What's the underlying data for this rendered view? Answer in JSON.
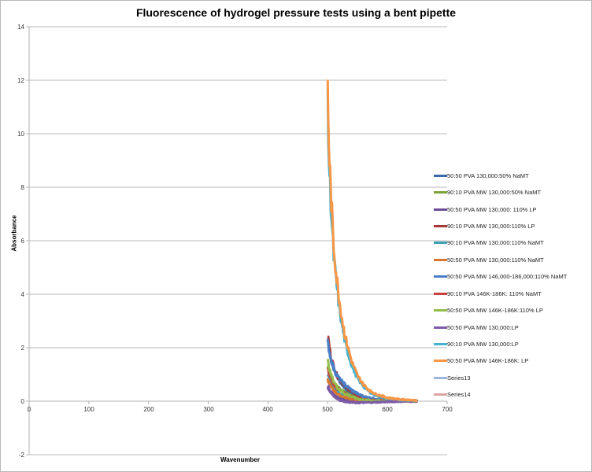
{
  "chart_data": {
    "type": "line",
    "title": "Fluorescence of hydrogel pressure tests using a bent pipette",
    "xlabel": "Wavenumber",
    "ylabel": "Absorbance",
    "xlim": [
      0,
      700
    ],
    "ylim": [
      -2,
      14
    ],
    "xticks": [
      0,
      100,
      200,
      300,
      400,
      500,
      600,
      700
    ],
    "yticks": [
      -2,
      0,
      2,
      4,
      6,
      8,
      10,
      12,
      14
    ],
    "grid": "horizontal",
    "legend_position": "right",
    "series": [
      {
        "name": "50:50 PVA 130,000:50% NaMT",
        "color": "#3c6aa6",
        "x": [
          500,
          505,
          510,
          515,
          520,
          530,
          540,
          550,
          560,
          580,
          600,
          620,
          650
        ],
        "values": [
          2.3,
          1.6,
          1.2,
          0.95,
          0.75,
          0.45,
          0.3,
          0.2,
          0.12,
          0.06,
          0.03,
          0.02,
          0.01
        ]
      },
      {
        "name": "90:10 PVA MW 130,000:50% NaMT",
        "color": "#7ea23a",
        "x": [
          500,
          505,
          510,
          515,
          520,
          530,
          540,
          550,
          560,
          580,
          600,
          620,
          650
        ],
        "values": [
          1.4,
          0.9,
          0.7,
          0.55,
          0.45,
          0.3,
          0.2,
          0.12,
          0.08,
          0.04,
          0.02,
          0.01,
          0.0
        ]
      },
      {
        "name": "50:50 PVA MW 130,000: 110% LP",
        "color": "#6b4e96",
        "x": [
          500,
          505,
          510,
          515,
          520,
          530,
          540,
          550,
          560,
          580,
          600,
          620,
          650
        ],
        "values": [
          0.5,
          0.35,
          0.25,
          0.18,
          0.12,
          0.06,
          0.02,
          -0.02,
          -0.03,
          -0.02,
          -0.01,
          0.0,
          0.0
        ]
      },
      {
        "name": "90:10 PVA MW 130,000:110% LP",
        "color": "#a33a36",
        "x": [
          500,
          505,
          510,
          515,
          520,
          530,
          540,
          550,
          560,
          580,
          600,
          620,
          650
        ],
        "values": [
          2.5,
          1.7,
          1.3,
          1.0,
          0.8,
          0.55,
          0.35,
          0.22,
          0.14,
          0.07,
          0.04,
          0.02,
          0.01
        ]
      },
      {
        "name": "90:10 PVA MW 130,000:110% NaMT",
        "color": "#3f9fb4",
        "x": [
          500,
          505,
          510,
          515,
          520,
          530,
          540,
          550,
          560,
          580,
          600,
          620,
          650
        ],
        "values": [
          1.0,
          0.7,
          0.5,
          0.38,
          0.3,
          0.2,
          0.12,
          0.08,
          0.05,
          0.03,
          0.02,
          0.01,
          0.0
        ]
      },
      {
        "name": "50:50 PVA MW 130,000:110% NaMT",
        "color": "#d9782d",
        "x": [
          500,
          505,
          510,
          515,
          520,
          530,
          540,
          550,
          560,
          580,
          600,
          620,
          650
        ],
        "values": [
          0.8,
          0.55,
          0.4,
          0.3,
          0.22,
          0.14,
          0.08,
          0.05,
          0.03,
          0.02,
          0.01,
          0.0,
          0.0
        ]
      },
      {
        "name": "50:50 PVA MW 146,000-186,000:110% NaMT",
        "color": "#4a7ec8",
        "x": [
          500,
          505,
          510,
          515,
          520,
          530,
          540,
          550,
          560,
          580,
          600,
          620,
          650
        ],
        "values": [
          2.2,
          1.6,
          1.25,
          1.0,
          0.82,
          0.6,
          0.42,
          0.28,
          0.18,
          0.09,
          0.05,
          0.03,
          0.01
        ]
      },
      {
        "name": "90:10 PVA 146K-186K: 110% NaMT",
        "color": "#c94040",
        "x": [
          500,
          505,
          510,
          515,
          520,
          530,
          540,
          550,
          560,
          580,
          600,
          620,
          650
        ],
        "values": [
          1.2,
          0.85,
          0.65,
          0.5,
          0.4,
          0.26,
          0.16,
          0.1,
          0.06,
          0.03,
          0.02,
          0.01,
          0.0
        ]
      },
      {
        "name": "50:50 PVA MW 146K-186K:110% LP",
        "color": "#94bd4a",
        "x": [
          500,
          505,
          510,
          515,
          520,
          530,
          540,
          550,
          560,
          580,
          600,
          620,
          650
        ],
        "values": [
          1.5,
          1.0,
          0.75,
          0.55,
          0.42,
          0.26,
          0.16,
          0.09,
          0.05,
          0.02,
          0.01,
          0.0,
          0.0
        ]
      },
      {
        "name": "50:50 PVA MW 130,000:LP",
        "color": "#7d5aa8",
        "x": [
          500,
          505,
          510,
          515,
          520,
          530,
          540,
          550,
          560,
          580,
          600,
          620,
          650
        ],
        "values": [
          0.6,
          0.35,
          0.2,
          0.1,
          0.04,
          -0.02,
          -0.05,
          -0.06,
          -0.05,
          -0.04,
          -0.02,
          -0.01,
          0.0
        ]
      },
      {
        "name": "90:10 PVA MW 130,000:LP",
        "color": "#45b3cf",
        "x": [
          500,
          502,
          505,
          508,
          510,
          515,
          520,
          525,
          530,
          540,
          550,
          560,
          570,
          580,
          600,
          620,
          650
        ],
        "values": [
          11.0,
          9.0,
          7.5,
          6.2,
          5.4,
          4.3,
          3.4,
          2.7,
          2.1,
          1.35,
          0.85,
          0.55,
          0.35,
          0.22,
          0.1,
          0.05,
          0.02
        ]
      },
      {
        "name": "50:50 PVA MW 146K-186K: LP",
        "color": "#f79646",
        "x": [
          500,
          502,
          505,
          508,
          510,
          515,
          520,
          525,
          530,
          540,
          550,
          560,
          570,
          580,
          600,
          620,
          650
        ],
        "values": [
          11.7,
          9.6,
          7.9,
          6.6,
          5.8,
          4.6,
          3.7,
          2.95,
          2.35,
          1.5,
          0.95,
          0.62,
          0.4,
          0.27,
          0.13,
          0.07,
          0.03
        ]
      },
      {
        "name": "Series13",
        "color": "#9db5dc",
        "x": [],
        "values": []
      },
      {
        "name": "Series14",
        "color": "#dba3a2",
        "x": [],
        "values": []
      }
    ]
  },
  "chart": {
    "title": "Fluorescence of hydrogel pressure tests using a bent pipette",
    "xlabel": "Wavenumber",
    "ylabel": "Absorbance",
    "xtick_labels": [
      "0",
      "100",
      "200",
      "300",
      "400",
      "500",
      "600",
      "700"
    ],
    "ytick_labels": [
      "14",
      "12",
      "10",
      "8",
      "6",
      "4",
      "2",
      "0",
      "-2"
    ]
  },
  "legend": {
    "items": [
      {
        "label": "50:50 PVA 130,000:50% NaMT",
        "color": "#3c6aa6"
      },
      {
        "label": "90:10 PVA MW 130,000:50% NaMT",
        "color": "#7ea23a"
      },
      {
        "label": "50:50 PVA MW 130,000: 110% LP",
        "color": "#6b4e96"
      },
      {
        "label": "90:10 PVA MW 130,000:110% LP",
        "color": "#a33a36"
      },
      {
        "label": "90:10 PVA MW 130,000:110% NaMT",
        "color": "#3f9fb4"
      },
      {
        "label": "50:50 PVA MW 130,000:110% NaMT",
        "color": "#d9782d"
      },
      {
        "label": "50:50 PVA MW 146,000-186,000:110% NaMT",
        "color": "#4a7ec8"
      },
      {
        "label": "90:10 PVA 146K-186K: 110% NaMT",
        "color": "#c94040"
      },
      {
        "label": "50:50 PVA MW 146K-186K:110% LP",
        "color": "#94bd4a"
      },
      {
        "label": "50:50 PVA MW 130,000:LP",
        "color": "#7d5aa8"
      },
      {
        "label": "90:10 PVA MW 130,000:LP",
        "color": "#45b3cf"
      },
      {
        "label": "50:50 PVA MW 146K-186K: LP",
        "color": "#f79646"
      },
      {
        "label": "Series13",
        "color": "#9db5dc"
      },
      {
        "label": "Series14",
        "color": "#dba3a2"
      }
    ]
  }
}
